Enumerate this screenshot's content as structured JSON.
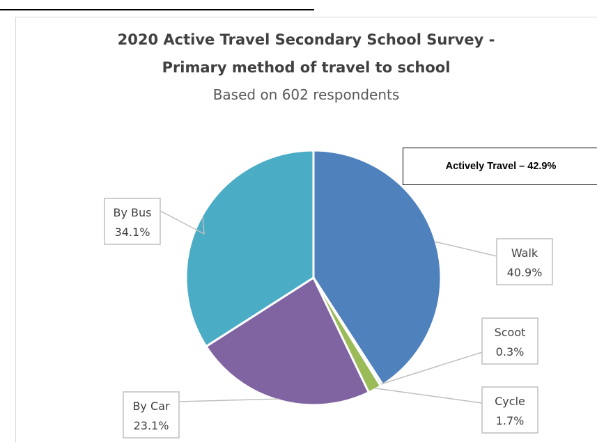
{
  "chart_data": {
    "type": "pie",
    "title": "2020 Active Travel Secondary School Survey -",
    "title_line2": "Primary method of travel to school",
    "subtitle": "Based on 602 respondents",
    "slices": [
      {
        "label": "Walk",
        "pct_text": "40.9%",
        "value": 40.9,
        "color": "#4f81bd"
      },
      {
        "label": "Scoot",
        "pct_text": "0.3%",
        "value": 0.3,
        "color": "#4bacc6"
      },
      {
        "label": "Cycle",
        "pct_text": "1.7%",
        "value": 1.7,
        "color": "#9bbb59"
      },
      {
        "label": "By Car",
        "pct_text": "23.1%",
        "value": 23.1,
        "color": "#8064a2"
      },
      {
        "label": "By Bus",
        "pct_text": "34.1%",
        "value": 34.1,
        "color": "#4bacc6"
      }
    ],
    "annotation": "Actively Travel – 42.9%",
    "start_angle_deg": 0,
    "direction": "clockwise"
  }
}
